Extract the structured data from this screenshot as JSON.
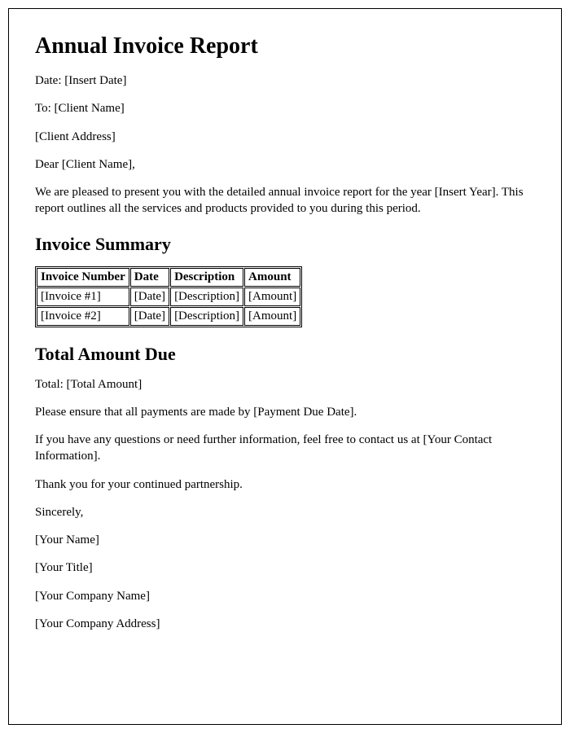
{
  "title": "Annual Invoice Report",
  "date_line": "Date: [Insert Date]",
  "to_line": "To: [Client Name]",
  "address_line": "[Client Address]",
  "salutation": "Dear [Client Name],",
  "intro_paragraph": "We are pleased to present you with the detailed annual invoice report for the year [Insert Year]. This report outlines all the services and products provided to you during this period.",
  "summary_heading": "Invoice Summary",
  "table": {
    "columns": [
      "Invoice Number",
      "Date",
      "Description",
      "Amount"
    ],
    "rows": [
      [
        "[Invoice #1]",
        "[Date]",
        "[Description]",
        "[Amount]"
      ],
      [
        "[Invoice #2]",
        "[Date]",
        "[Description]",
        "[Amount]"
      ]
    ]
  },
  "total_heading": "Total Amount Due",
  "total_line": "Total: [Total Amount]",
  "payment_line": "Please ensure that all payments are made by [Payment Due Date].",
  "contact_line": "If you have any questions or need further information, feel free to contact us at [Your Contact Information].",
  "thanks_line": "Thank you for your continued partnership.",
  "closing": "Sincerely,",
  "signer_name": "[Your Name]",
  "signer_title": "[Your Title]",
  "company_name": "[Your Company Name]",
  "company_address": "[Your Company Address]"
}
